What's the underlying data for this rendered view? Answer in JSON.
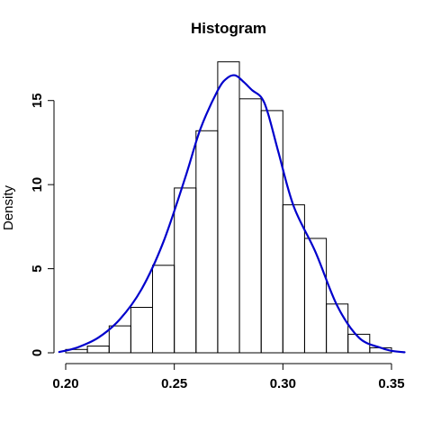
{
  "chart_data": {
    "type": "bar",
    "title": "Histogram",
    "xlabel": "",
    "ylabel": "Density",
    "xlim": [
      0.2,
      0.35
    ],
    "ylim": [
      0,
      17.5
    ],
    "grid": false,
    "legend": "none",
    "x_ticks": [
      0.2,
      0.25,
      0.3,
      0.35
    ],
    "x_tick_labels": [
      "0.20",
      "0.25",
      "0.30",
      "0.35"
    ],
    "y_ticks": [
      0,
      5,
      10,
      15
    ],
    "y_tick_labels": [
      "0",
      "5",
      "10",
      "15"
    ],
    "bins": [
      {
        "x0": 0.2,
        "x1": 0.21,
        "value": 0.2
      },
      {
        "x0": 0.21,
        "x1": 0.22,
        "value": 0.4
      },
      {
        "x0": 0.22,
        "x1": 0.23,
        "value": 1.6
      },
      {
        "x0": 0.23,
        "x1": 0.24,
        "value": 2.7
      },
      {
        "x0": 0.24,
        "x1": 0.25,
        "value": 5.2
      },
      {
        "x0": 0.25,
        "x1": 0.26,
        "value": 9.8
      },
      {
        "x0": 0.26,
        "x1": 0.27,
        "value": 13.2
      },
      {
        "x0": 0.27,
        "x1": 0.28,
        "value": 17.3
      },
      {
        "x0": 0.28,
        "x1": 0.29,
        "value": 15.1
      },
      {
        "x0": 0.29,
        "x1": 0.3,
        "value": 14.4
      },
      {
        "x0": 0.3,
        "x1": 0.31,
        "value": 8.8
      },
      {
        "x0": 0.31,
        "x1": 0.32,
        "value": 6.8
      },
      {
        "x0": 0.32,
        "x1": 0.33,
        "value": 2.9
      },
      {
        "x0": 0.33,
        "x1": 0.34,
        "value": 1.1
      },
      {
        "x0": 0.34,
        "x1": 0.35,
        "value": 0.3
      }
    ],
    "density_curve": {
      "color": "#0000cc",
      "x": [
        0.197,
        0.205,
        0.215,
        0.225,
        0.235,
        0.245,
        0.255,
        0.262,
        0.27,
        0.274,
        0.278,
        0.282,
        0.286,
        0.29,
        0.293,
        0.298,
        0.305,
        0.315,
        0.325,
        0.335,
        0.345,
        0.35,
        0.356
      ],
      "y": [
        0.05,
        0.3,
        0.9,
        2.0,
        3.8,
        6.6,
        10.4,
        13.3,
        15.6,
        16.3,
        16.5,
        16.1,
        15.6,
        15.2,
        14.3,
        11.9,
        8.7,
        6.0,
        2.8,
        0.9,
        0.3,
        0.12,
        0.03
      ]
    }
  }
}
